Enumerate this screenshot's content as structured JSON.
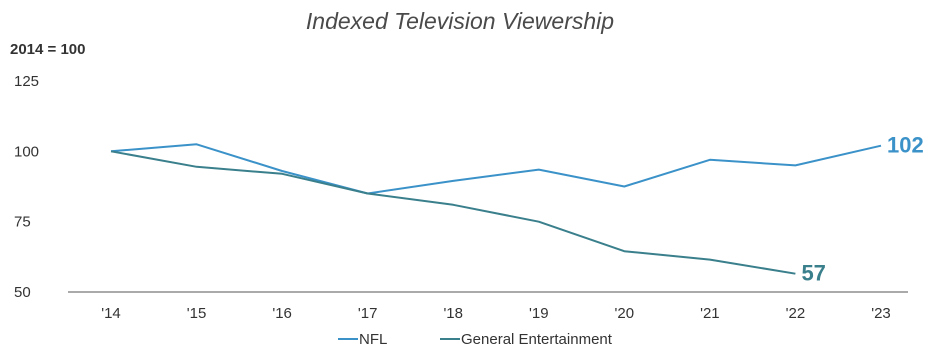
{
  "chart_data": {
    "type": "line",
    "title": "Indexed Television Viewership",
    "unit_label": "2014 = 100",
    "xlabel": "",
    "ylabel": "",
    "categories": [
      "'14",
      "'15",
      "'16",
      "'17",
      "'18",
      "'19",
      "'20",
      "'21",
      "'22",
      "'23"
    ],
    "ylim": [
      50,
      125
    ],
    "yticks": [
      50,
      75,
      100,
      125
    ],
    "grid": false,
    "legend_position": "bottom",
    "series": [
      {
        "name": "NFL",
        "color": "#3b92c9",
        "values": [
          100,
          102.5,
          93,
          85,
          89.5,
          93.5,
          87.5,
          97,
          95,
          102
        ],
        "end_label": "102"
      },
      {
        "name": "General Entertainment",
        "color": "#3a7f8c",
        "values": [
          100,
          94.5,
          92,
          85,
          81,
          75,
          64.5,
          61.5,
          56.5,
          null
        ],
        "end_label": "57"
      }
    ]
  }
}
